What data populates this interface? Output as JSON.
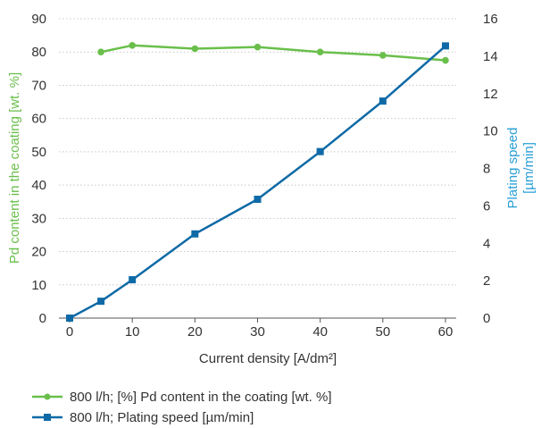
{
  "chart_data": {
    "type": "line",
    "xlabel": "Current density [A/dm²]",
    "ylabel_left": "Pd content in the coating [wt. %]",
    "ylabel_right_lines": [
      "Plating speed",
      "[µm/min]"
    ],
    "xlim": [
      0,
      60
    ],
    "ylim_left": [
      0,
      90
    ],
    "ylim_right": [
      0,
      16
    ],
    "xticks": [
      0,
      10,
      20,
      30,
      40,
      50,
      60
    ],
    "yticks_left": [
      0,
      10,
      20,
      30,
      40,
      50,
      60,
      70,
      80,
      90
    ],
    "yticks_right": [
      0,
      2,
      4,
      6,
      8,
      10,
      12,
      14,
      16
    ],
    "grid": "horizontal dashed",
    "legend_position": "bottom",
    "series": [
      {
        "name": "800 l/h; [%] Pd content in the coating [wt. %]",
        "axis": "left",
        "marker": "circle",
        "color": "#6abf4b",
        "x": [
          5,
          10,
          20,
          30,
          40,
          50,
          60
        ],
        "y": [
          80,
          82,
          81,
          81.5,
          80,
          79,
          77.5
        ]
      },
      {
        "name": "800 l/h; Plating speed [µm/min]",
        "axis": "right",
        "marker": "square",
        "color": "#0e6aa6",
        "x": [
          0,
          5,
          10,
          20,
          30,
          40,
          50,
          60
        ],
        "y": [
          0,
          0.9,
          2.05,
          4.5,
          6.35,
          8.9,
          11.6,
          14.55
        ]
      }
    ]
  }
}
